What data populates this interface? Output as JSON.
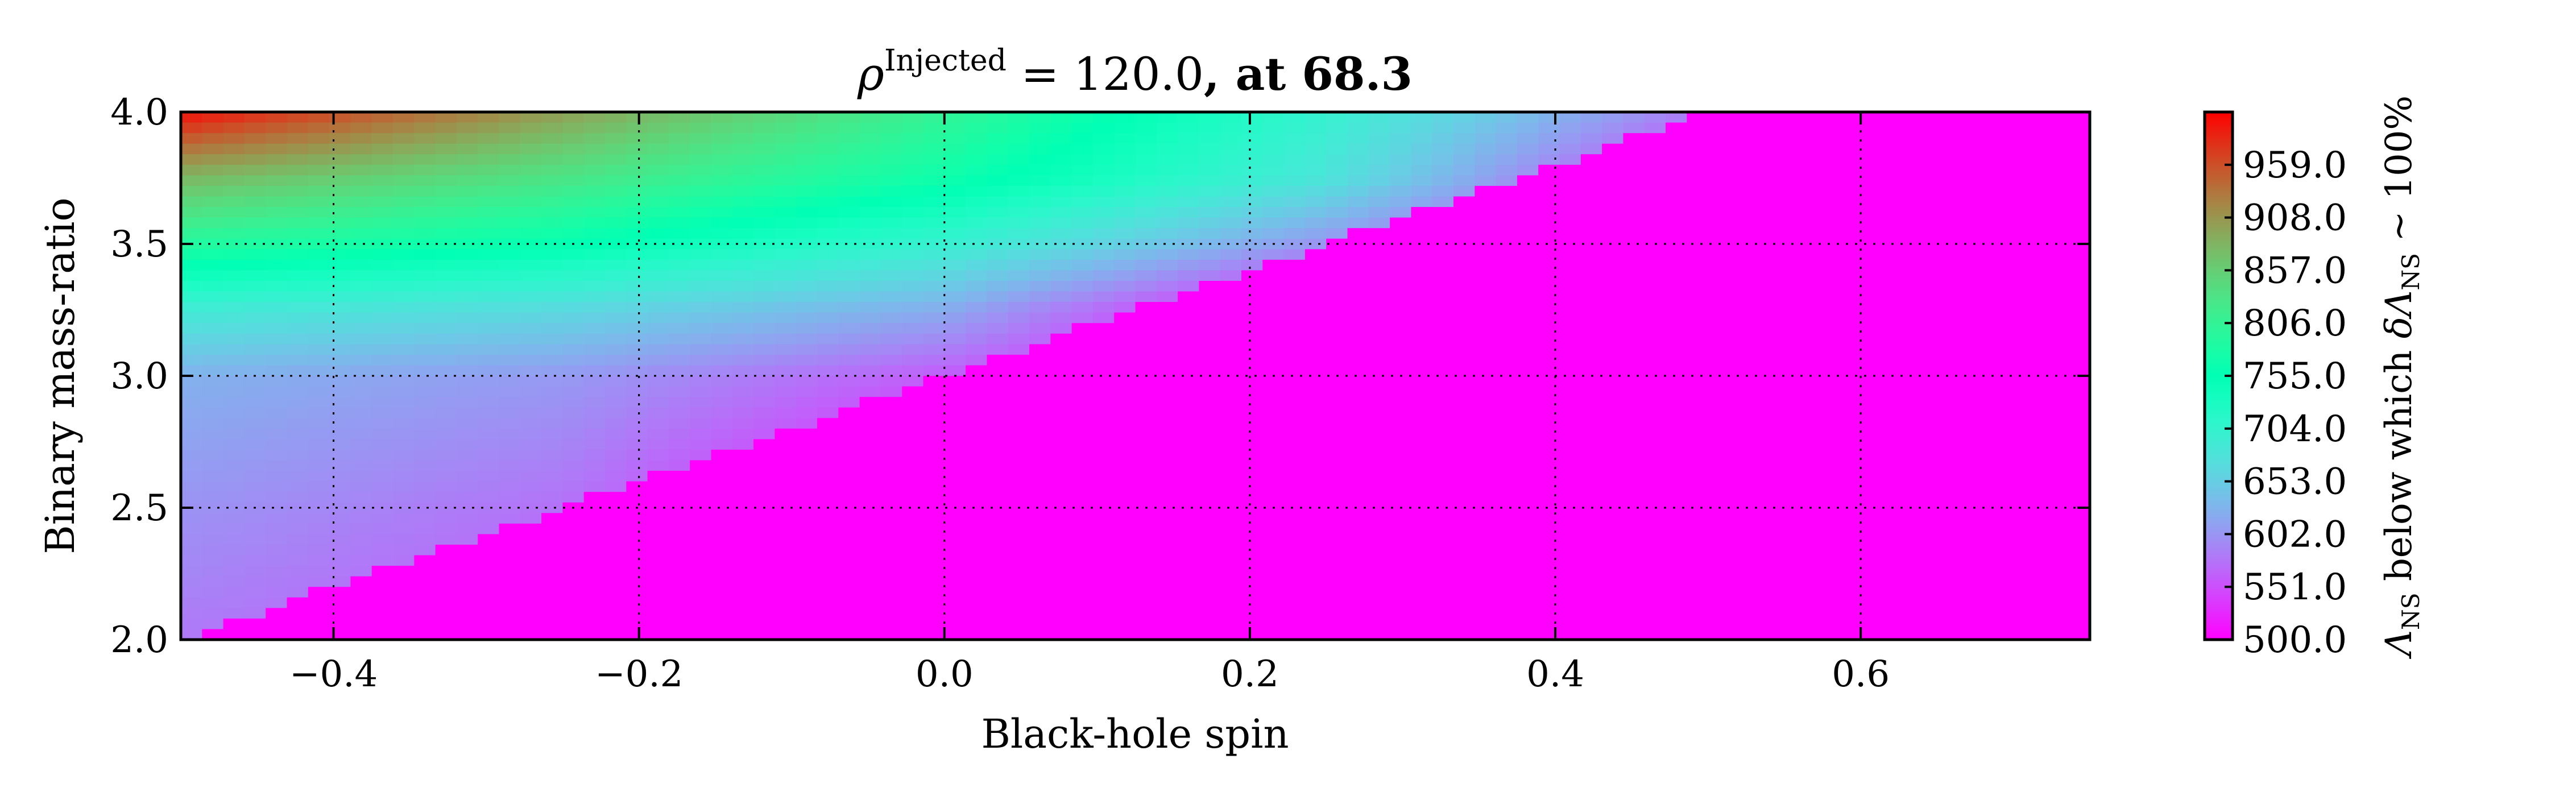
{
  "chart_data": {
    "type": "heatmap",
    "title": {
      "rho": "ρ",
      "superscript": "Injected",
      "equals": " = 120.0",
      "suffix": ", at 68.3"
    },
    "xlabel": "Black-hole spin",
    "ylabel": "Binary mass-ratio",
    "xlim": [
      -0.5,
      0.75
    ],
    "ylim": [
      2.0,
      4.0
    ],
    "xticks": [
      {
        "value": -0.4,
        "label": "−0.4"
      },
      {
        "value": -0.2,
        "label": "−0.2"
      },
      {
        "value": 0.0,
        "label": "0.0"
      },
      {
        "value": 0.2,
        "label": "0.2"
      },
      {
        "value": 0.4,
        "label": "0.4"
      },
      {
        "value": 0.6,
        "label": "0.6"
      }
    ],
    "yticks": [
      {
        "value": 2.0,
        "label": "2.0"
      },
      {
        "value": 2.5,
        "label": "2.5"
      },
      {
        "value": 3.0,
        "label": "3.0"
      },
      {
        "value": 3.5,
        "label": "3.5"
      },
      {
        "value": 4.0,
        "label": "4.0"
      }
    ],
    "grid": true,
    "colormap": "rainbow",
    "colorbar": {
      "range": [
        500.0,
        1010.0
      ],
      "ticks": [
        {
          "value": 500.0,
          "label": "500.0"
        },
        {
          "value": 551.0,
          "label": "551.0"
        },
        {
          "value": 602.0,
          "label": "602.0"
        },
        {
          "value": 653.0,
          "label": "653.0"
        },
        {
          "value": 704.0,
          "label": "704.0"
        },
        {
          "value": 755.0,
          "label": "755.0"
        },
        {
          "value": 806.0,
          "label": "806.0"
        },
        {
          "value": 857.0,
          "label": "857.0"
        },
        {
          "value": 908.0,
          "label": "908.0"
        },
        {
          "value": 959.0,
          "label": "959.0"
        }
      ],
      "label_parts": {
        "lambda": "Λ",
        "sub": "NS",
        "middle": " below which ",
        "delta": "δΛ",
        "tilde": " ~ 100%"
      }
    },
    "field": {
      "spin": [
        -0.5,
        -0.25,
        0.0,
        0.25,
        0.5,
        0.75
      ],
      "mass_ratio": [
        2.0,
        2.5,
        3.0,
        3.25,
        3.5,
        3.75,
        4.0
      ],
      "lambda": [
        [
          580,
          555,
          500,
          500,
          500,
          500
        ],
        [
          600,
          575,
          500,
          500,
          500,
          500
        ],
        [
          625,
          605,
          560,
          500,
          500,
          500
        ],
        [
          690,
          665,
          620,
          500,
          500,
          500
        ],
        [
          790,
          760,
          700,
          600,
          500,
          500
        ],
        [
          880,
          830,
          770,
          680,
          520,
          500
        ],
        [
          1000,
          900,
          805,
          700,
          580,
          500
        ]
      ]
    },
    "boundary": {
      "note": "",
      "points": [
        [
          -0.5,
          2.0
        ],
        [
          0.5,
          4.0
        ]
      ]
    }
  }
}
